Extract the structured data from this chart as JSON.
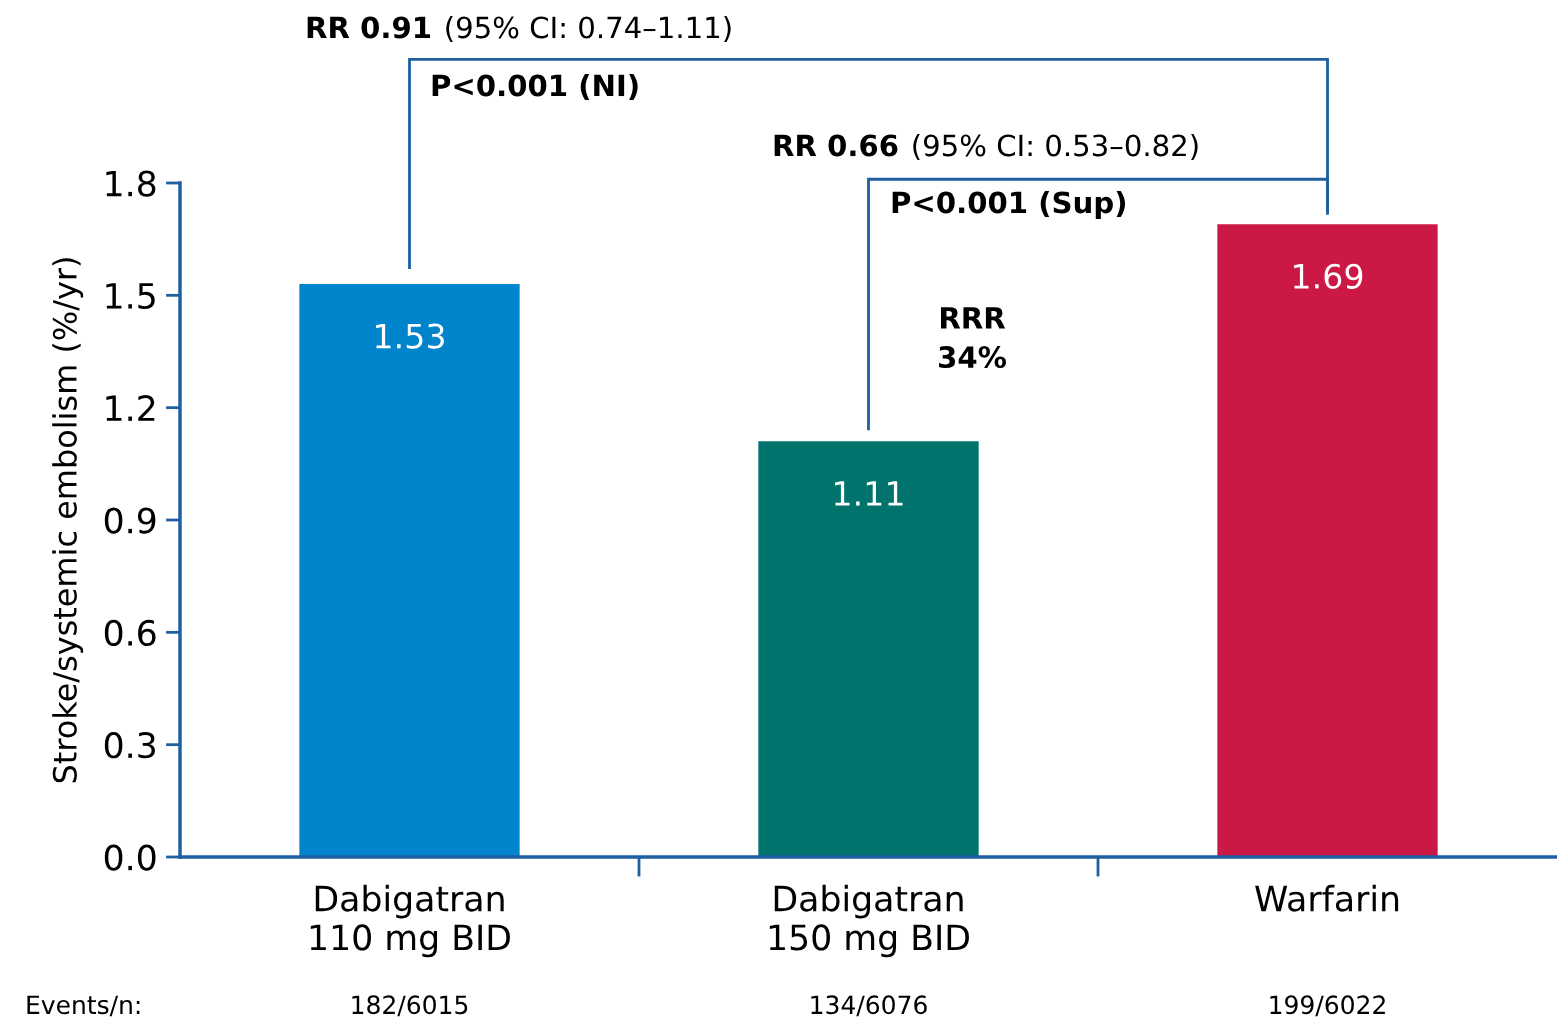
{
  "chart_data": {
    "type": "bar",
    "ylabel": "Stroke/systemic embolism (%/yr)",
    "categories": [
      "Dabigatran\n110 mg BID",
      "Dabigatran\n150 mg BID",
      "Warfarin"
    ],
    "values": [
      1.53,
      1.11,
      1.69
    ],
    "colors": [
      "#0084cc",
      "#00736c",
      "#cc1844"
    ],
    "ylim": [
      0,
      1.8
    ],
    "yticks": [
      {
        "value": 0,
        "label": "0.0"
      },
      0.3,
      0.6,
      0.9,
      1.2,
      1.5,
      1.8
    ],
    "data_labels": true,
    "grid": false,
    "legend": false,
    "annotations": [
      "RR 0.91",
      "(95% CI: 0.74–1.11)",
      "P<0.001 (NI)",
      "RR 0.66",
      "(95% CI: 0.53–0.82)",
      "P<0.001 (Sup)",
      "RRR\n34%",
      "Events/n:",
      "182/6015",
      "134/6076",
      "199/6022"
    ]
  }
}
